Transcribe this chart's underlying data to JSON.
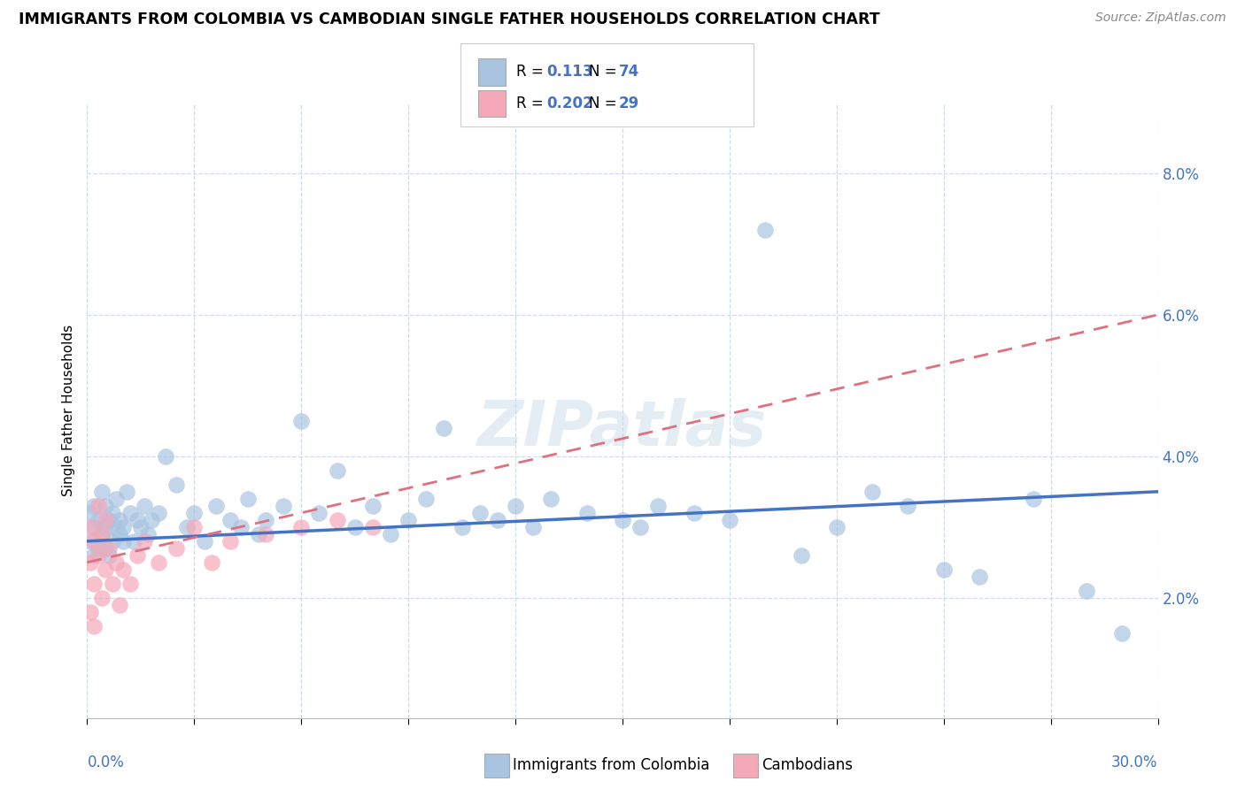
{
  "title": "IMMIGRANTS FROM COLOMBIA VS CAMBODIAN SINGLE FATHER HOUSEHOLDS CORRELATION CHART",
  "source": "Source: ZipAtlas.com",
  "ylabel": "Single Father Households",
  "legend1_r": "0.113",
  "legend1_n": "74",
  "legend2_r": "0.202",
  "legend2_n": "29",
  "legend1_label": "Immigrants from Colombia",
  "legend2_label": "Cambodians",
  "blue_scatter_color": "#a8c4e0",
  "pink_scatter_color": "#f4a8b8",
  "blue_line_color": "#4472c4",
  "pink_line_color": "#e07080",
  "accent_color": "#4472c4",
  "grid_color": "#c8d8e8",
  "watermark_color": "#c8dce8",
  "xlim": [
    0.0,
    0.3
  ],
  "ylim": [
    0.003,
    0.09
  ],
  "ytick_vals": [
    0.02,
    0.04,
    0.06,
    0.08
  ],
  "ytick_labels": [
    "2.0%",
    "4.0%",
    "6.0%",
    "8.0%"
  ],
  "colombia_x": [
    0.001,
    0.001,
    0.002,
    0.002,
    0.002,
    0.003,
    0.003,
    0.004,
    0.004,
    0.005,
    0.005,
    0.005,
    0.006,
    0.006,
    0.007,
    0.007,
    0.008,
    0.008,
    0.009,
    0.009,
    0.01,
    0.01,
    0.011,
    0.012,
    0.013,
    0.014,
    0.015,
    0.016,
    0.017,
    0.018,
    0.02,
    0.022,
    0.025,
    0.028,
    0.03,
    0.033,
    0.036,
    0.04,
    0.043,
    0.045,
    0.048,
    0.05,
    0.055,
    0.06,
    0.065,
    0.07,
    0.075,
    0.08,
    0.085,
    0.09,
    0.095,
    0.1,
    0.105,
    0.11,
    0.115,
    0.12,
    0.125,
    0.13,
    0.14,
    0.15,
    0.155,
    0.16,
    0.17,
    0.18,
    0.19,
    0.2,
    0.21,
    0.22,
    0.23,
    0.24,
    0.25,
    0.265,
    0.28,
    0.29
  ],
  "colombia_y": [
    0.032,
    0.028,
    0.03,
    0.026,
    0.033,
    0.031,
    0.027,
    0.029,
    0.035,
    0.03,
    0.027,
    0.033,
    0.031,
    0.026,
    0.032,
    0.028,
    0.03,
    0.034,
    0.029,
    0.031,
    0.028,
    0.03,
    0.035,
    0.032,
    0.028,
    0.031,
    0.03,
    0.033,
    0.029,
    0.031,
    0.032,
    0.04,
    0.036,
    0.03,
    0.032,
    0.028,
    0.033,
    0.031,
    0.03,
    0.034,
    0.029,
    0.031,
    0.033,
    0.045,
    0.032,
    0.038,
    0.03,
    0.033,
    0.029,
    0.031,
    0.034,
    0.044,
    0.03,
    0.032,
    0.031,
    0.033,
    0.03,
    0.034,
    0.032,
    0.031,
    0.03,
    0.033,
    0.032,
    0.031,
    0.072,
    0.026,
    0.03,
    0.035,
    0.033,
    0.024,
    0.023,
    0.034,
    0.021,
    0.015
  ],
  "cambodian_x": [
    0.001,
    0.001,
    0.001,
    0.002,
    0.002,
    0.002,
    0.003,
    0.003,
    0.004,
    0.004,
    0.005,
    0.005,
    0.006,
    0.007,
    0.008,
    0.009,
    0.01,
    0.012,
    0.014,
    0.016,
    0.02,
    0.025,
    0.03,
    0.035,
    0.04,
    0.05,
    0.06,
    0.07,
    0.08
  ],
  "cambodian_y": [
    0.03,
    0.025,
    0.018,
    0.028,
    0.022,
    0.016,
    0.033,
    0.026,
    0.029,
    0.02,
    0.031,
    0.024,
    0.027,
    0.022,
    0.025,
    0.019,
    0.024,
    0.022,
    0.026,
    0.028,
    0.025,
    0.027,
    0.03,
    0.025,
    0.028,
    0.029,
    0.03,
    0.031,
    0.03
  ]
}
